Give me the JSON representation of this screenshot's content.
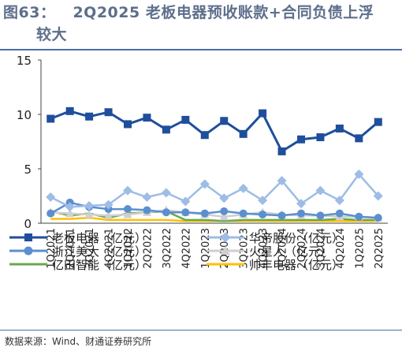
{
  "figure_label": "图63：",
  "title_line1": "2Q2025  老板电器预收账款+合同负债上浮",
  "title_line2": "较大",
  "source": "数据来源：Wind、财通证券研究所",
  "chart_data": {
    "type": "line",
    "title": "2Q2025 老板电器预收账款+合同负债上浮较大",
    "ylabel": "",
    "xlabel": "",
    "ylim": [
      0,
      15
    ],
    "yticks": [
      0,
      5,
      10,
      15
    ],
    "grid": false,
    "legend_position": "bottom",
    "categories": [
      "1Q2021",
      "2Q2021",
      "3Q2021",
      "4Q2021",
      "1Q2022",
      "2Q2022",
      "3Q2022",
      "4Q2022",
      "1Q2023",
      "2Q2023",
      "3Q2023",
      "4Q2023",
      "1Q2024",
      "2Q2024",
      "3Q2024",
      "4Q2024",
      "1Q2025",
      "2Q2025"
    ],
    "series": [
      {
        "name": "老板电器（亿元）",
        "color": "#1f4e9c",
        "marker": "square",
        "values": [
          9.6,
          10.3,
          9.8,
          10.2,
          9.1,
          9.7,
          8.6,
          9.5,
          8.1,
          9.4,
          8.2,
          10.1,
          6.6,
          7.7,
          7.9,
          8.7,
          7.8,
          9.3
        ]
      },
      {
        "name": "华帝股份（亿元）",
        "color": "#9dbce6",
        "marker": "diamond",
        "values": [
          2.4,
          1.5,
          1.6,
          1.7,
          3.0,
          2.4,
          2.8,
          2.0,
          3.6,
          2.3,
          3.2,
          2.1,
          3.9,
          1.8,
          3.0,
          2.1,
          4.5,
          2.5
        ]
      },
      {
        "name": "浙江美大（亿元）",
        "color": "#5b8fcf",
        "marker": "circle",
        "values": [
          0.9,
          1.9,
          1.5,
          1.3,
          1.3,
          1.2,
          1.0,
          1.0,
          0.9,
          1.1,
          0.9,
          0.8,
          0.7,
          0.9,
          0.7,
          0.9,
          0.6,
          0.5
        ]
      },
      {
        "name": "火星人（亿元）",
        "color": "#cfcfcf",
        "marker": "triangle",
        "values": [
          1.0,
          0.9,
          0.8,
          0.7,
          0.8,
          1.0,
          1.2,
          1.0,
          0.8,
          0.6,
          0.8,
          1.0,
          0.8,
          0.7,
          0.7,
          0.6,
          0.6,
          0.5
        ]
      },
      {
        "name": "亿田智能（亿元）",
        "color": "#6aa84f",
        "marker": "none",
        "values": [
          1.1,
          0.7,
          0.9,
          0.5,
          0.9,
          1.0,
          1.1,
          0.3,
          0.3,
          0.2,
          0.3,
          0.3,
          0.3,
          0.3,
          0.3,
          0.4,
          0.3,
          0.3
        ]
      },
      {
        "name": "帅丰电器（亿元）",
        "color": "#ffc000",
        "marker": "none",
        "values": [
          0.4,
          0.4,
          0.5,
          0.3,
          0.3,
          0.3,
          0.3,
          0.2,
          0.2,
          0.2,
          0.2,
          0.2,
          0.2,
          0.2,
          0.2,
          0.2,
          0.2,
          0.2
        ]
      }
    ]
  }
}
